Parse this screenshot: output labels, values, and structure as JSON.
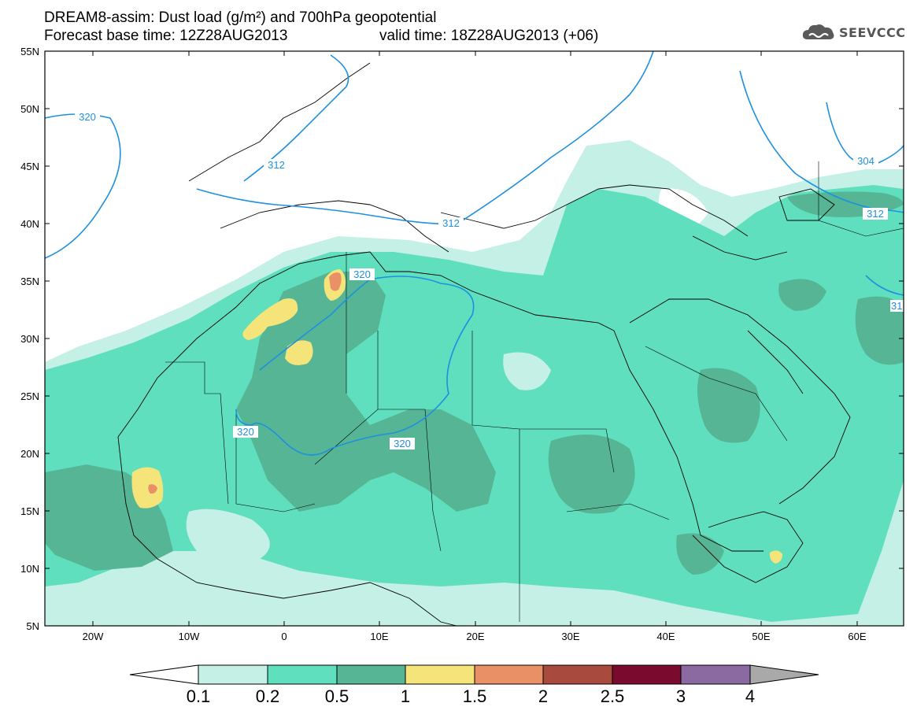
{
  "title": {
    "line1": "DREAM8-assim: Dust load (g/m²) and 700hPa geopotential",
    "line2": "Forecast base time: 12Z28AUG2013",
    "valid": "valid time: 18Z28AUG2013 (+06)"
  },
  "logo": {
    "icon": "cloud-icon",
    "text": "SEEVCCC"
  },
  "axes": {
    "x_ticks": [
      "20W",
      "10W",
      "0",
      "10E",
      "20E",
      "30E",
      "40E",
      "50E",
      "60E"
    ],
    "y_ticks": [
      "55N",
      "50N",
      "45N",
      "40N",
      "35N",
      "30N",
      "25N",
      "20N",
      "15N",
      "10N",
      "5N"
    ]
  },
  "contour_labels": [
    "320",
    "312",
    "312",
    "320",
    "320",
    "320",
    "304",
    "312",
    "31"
  ],
  "colorbar": {
    "labels": [
      "0.1",
      "0.2",
      "0.5",
      "1",
      "1.5",
      "2",
      "2.5",
      "3",
      "4"
    ],
    "colors": [
      "#c4f0e6",
      "#5fdfbd",
      "#55b594",
      "#f5e47a",
      "#e99066",
      "#a84a3e",
      "#7a0b2e",
      "#8a6aa0",
      "#a9a9a9"
    ]
  },
  "colors": {
    "contour": "#1e90e0",
    "low": "#c4f0e6",
    "mid": "#5fdfbd",
    "high": "#55b594",
    "yellow": "#f5e47a",
    "orange": "#e99066"
  }
}
